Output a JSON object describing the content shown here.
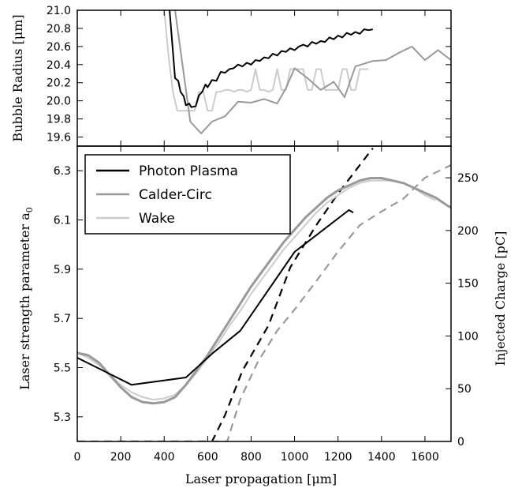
{
  "chart_data": [
    {
      "type": "line",
      "panel": "top",
      "ylabel": "Bubble Radius [μm]",
      "xlim": [
        0,
        1720
      ],
      "ylim": [
        19.5,
        21.0
      ],
      "yticks": [
        "19.6",
        "19.8",
        "20.0",
        "20.2",
        "20.4",
        "20.6",
        "20.8",
        "21.0"
      ],
      "series": [
        {
          "name": "Photon Plasma",
          "color": "#000000",
          "x": [
            425,
            450,
            465,
            475,
            490,
            500,
            515,
            525,
            545,
            560,
            575,
            590,
            600,
            620,
            640,
            660,
            680,
            700,
            720,
            740,
            760,
            780,
            800,
            820,
            840,
            860,
            880,
            900,
            920,
            940,
            960,
            980,
            1000,
            1020,
            1040,
            1060,
            1080,
            1100,
            1120,
            1140,
            1160,
            1180,
            1200,
            1220,
            1240,
            1260,
            1280,
            1300,
            1320,
            1340,
            1360
          ],
          "y": [
            21.0,
            20.25,
            20.22,
            20.1,
            20.05,
            19.95,
            19.97,
            19.93,
            19.94,
            20.06,
            20.1,
            20.18,
            20.15,
            20.23,
            20.22,
            20.32,
            20.31,
            20.35,
            20.36,
            20.4,
            20.38,
            20.42,
            20.4,
            20.45,
            20.44,
            20.48,
            20.47,
            20.52,
            20.5,
            20.55,
            20.54,
            20.58,
            20.56,
            20.6,
            20.62,
            20.6,
            20.65,
            20.63,
            20.66,
            20.65,
            20.7,
            20.68,
            20.72,
            20.7,
            20.75,
            20.73,
            20.76,
            20.74,
            20.79,
            20.78,
            20.79
          ]
        },
        {
          "name": "Calder-Circ",
          "color": "#999999",
          "x": [
            450,
            520,
            570,
            620,
            680,
            740,
            800,
            860,
            920,
            960,
            1000,
            1060,
            1120,
            1180,
            1230,
            1280,
            1320,
            1360,
            1420,
            1480,
            1540,
            1600,
            1660,
            1720
          ],
          "y": [
            21.0,
            19.77,
            19.64,
            19.77,
            19.83,
            19.99,
            19.98,
            20.02,
            19.97,
            20.14,
            20.36,
            20.25,
            20.12,
            20.21,
            20.04,
            20.38,
            20.41,
            20.44,
            20.45,
            20.53,
            20.6,
            20.45,
            20.56,
            20.45
          ]
        },
        {
          "name": "Wake",
          "color": "#cccccc",
          "x": [
            400,
            420,
            440,
            460,
            500,
            540,
            560,
            580,
            600,
            620,
            640,
            660,
            680,
            700,
            720,
            740,
            760,
            780,
            800,
            820,
            840,
            860,
            880,
            900,
            920,
            940,
            960,
            980,
            1000,
            1020,
            1040,
            1060,
            1080,
            1100,
            1120,
            1140,
            1160,
            1180,
            1200,
            1220,
            1240,
            1260,
            1280,
            1300,
            1320,
            1340
          ],
          "y": [
            21.0,
            20.5,
            20.1,
            19.89,
            19.89,
            19.89,
            20.1,
            20.1,
            19.89,
            19.89,
            20.1,
            20.1,
            20.12,
            20.12,
            20.1,
            20.12,
            20.12,
            20.1,
            20.12,
            20.35,
            20.12,
            20.12,
            20.1,
            20.12,
            20.35,
            20.12,
            20.12,
            20.35,
            20.35,
            20.35,
            20.35,
            20.12,
            20.12,
            20.35,
            20.35,
            20.12,
            20.12,
            20.12,
            20.12,
            20.35,
            20.35,
            20.12,
            20.12,
            20.35,
            20.35,
            20.35
          ]
        }
      ]
    },
    {
      "type": "line",
      "panel": "bottom",
      "xlabel": "Laser propagation [μm]",
      "ylabel": "Laser strength parameter a",
      "ylabel_sub": "0",
      "ylabel_right": "Injected Charge [pC]",
      "xlim": [
        0,
        1720
      ],
      "ylim": [
        5.2,
        6.4
      ],
      "ylim_right": [
        0,
        280
      ],
      "xticks": [
        "0",
        "200",
        "400",
        "600",
        "800",
        "1000",
        "1200",
        "1400",
        "1600"
      ],
      "yticks": [
        "5.3",
        "5.5",
        "5.7",
        "5.9",
        "6.1",
        "6.3"
      ],
      "yticks_right": [
        "0",
        "50",
        "100",
        "150",
        "200",
        "250"
      ],
      "legend_position": "top-left",
      "series": [
        {
          "name": "Photon Plasma",
          "color": "#000000",
          "x": [
            0,
            250,
            500,
            625,
            750,
            1000,
            1250,
            1270
          ],
          "y": [
            5.54,
            5.43,
            5.46,
            5.56,
            5.65,
            5.97,
            6.14,
            6.13
          ]
        },
        {
          "name": "Calder-Circ",
          "color": "#999999",
          "x": [
            0,
            50,
            100,
            150,
            200,
            250,
            300,
            350,
            400,
            450,
            500,
            550,
            600,
            650,
            700,
            750,
            800,
            850,
            900,
            950,
            1000,
            1050,
            1100,
            1150,
            1200,
            1250,
            1300,
            1350,
            1400,
            1450,
            1500,
            1550,
            1600,
            1650,
            1700,
            1720
          ],
          "y": [
            5.56,
            5.55,
            5.52,
            5.47,
            5.42,
            5.38,
            5.36,
            5.355,
            5.36,
            5.38,
            5.43,
            5.49,
            5.55,
            5.62,
            5.69,
            5.76,
            5.83,
            5.89,
            5.95,
            6.01,
            6.06,
            6.11,
            6.15,
            6.19,
            6.22,
            6.24,
            6.26,
            6.27,
            6.27,
            6.26,
            6.25,
            6.23,
            6.21,
            6.19,
            6.16,
            6.15
          ]
        },
        {
          "name": "Wake",
          "color": "#cccccc",
          "x": [
            0,
            50,
            100,
            150,
            200,
            250,
            300,
            350,
            400,
            450,
            500,
            550,
            600,
            650,
            700,
            750,
            800,
            850,
            900,
            950,
            1000,
            1050,
            1100,
            1150,
            1200,
            1250,
            1300,
            1350,
            1400,
            1450,
            1500,
            1550,
            1600,
            1650
          ],
          "y": [
            5.56,
            5.54,
            5.51,
            5.47,
            5.43,
            5.4,
            5.38,
            5.37,
            5.375,
            5.39,
            5.43,
            5.48,
            5.54,
            5.6,
            5.67,
            5.73,
            5.8,
            5.86,
            5.92,
            5.98,
            6.03,
            6.08,
            6.13,
            6.17,
            6.2,
            6.23,
            6.25,
            6.26,
            6.26,
            6.26,
            6.25,
            6.23,
            6.2,
            6.18
          ]
        }
      ],
      "charge_series": [
        {
          "color": "#000000",
          "dash": true,
          "x": [
            0,
            620,
            680,
            760,
            880,
            980,
            1100,
            1200,
            1300,
            1360
          ],
          "y": [
            0,
            0,
            25,
            67,
            110,
            165,
            205,
            235,
            262,
            278
          ]
        },
        {
          "color": "#999999",
          "dash": true,
          "x": [
            0,
            690,
            750,
            830,
            920,
            1000,
            1100,
            1200,
            1300,
            1400,
            1500,
            1600,
            1720
          ],
          "y": [
            0,
            0,
            40,
            75,
            105,
            125,
            152,
            180,
            205,
            218,
            230,
            250,
            262
          ]
        }
      ]
    }
  ]
}
